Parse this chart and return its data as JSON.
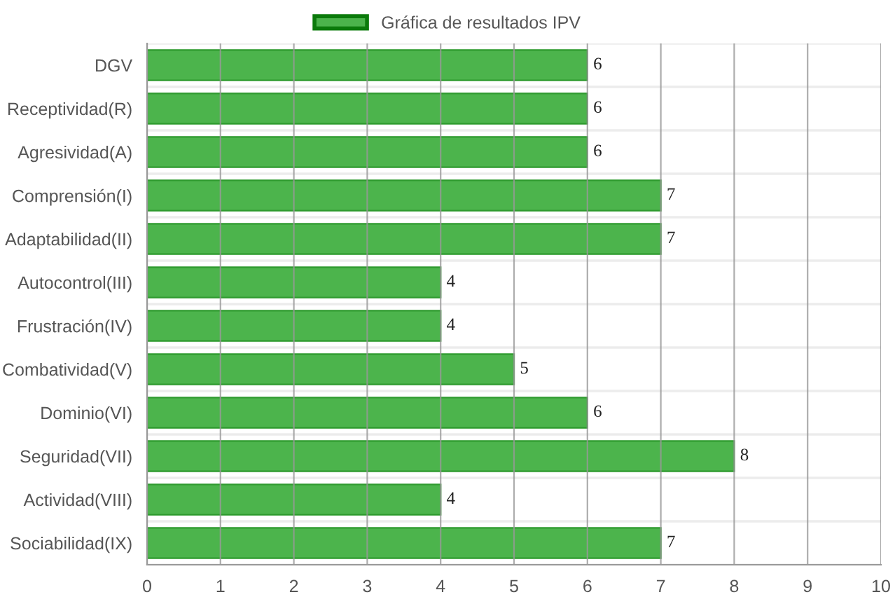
{
  "chart_data": {
    "type": "bar",
    "orientation": "horizontal",
    "categories": [
      "DGV",
      "Receptividad(R)",
      "Agresividad(A)",
      "Comprensión(I)",
      "Adaptabilidad(II)",
      "Autocontrol(III)",
      "Frustración(IV)",
      "Combatividad(V)",
      "Dominio(VI)",
      "Seguridad(VII)",
      "Actividad(VIII)",
      "Sociabilidad(IX)"
    ],
    "series": [
      {
        "name": "Gráfica de resultados IPV",
        "color": "#4cb44c",
        "values": [
          6,
          6,
          6,
          7,
          7,
          4,
          4,
          5,
          6,
          8,
          4,
          7
        ]
      }
    ],
    "xlim": [
      0,
      10
    ],
    "xticks": [
      0,
      1,
      2,
      3,
      4,
      5,
      6,
      7,
      8,
      9,
      10
    ],
    "data_labels": true,
    "grid": true,
    "legend": "top"
  }
}
